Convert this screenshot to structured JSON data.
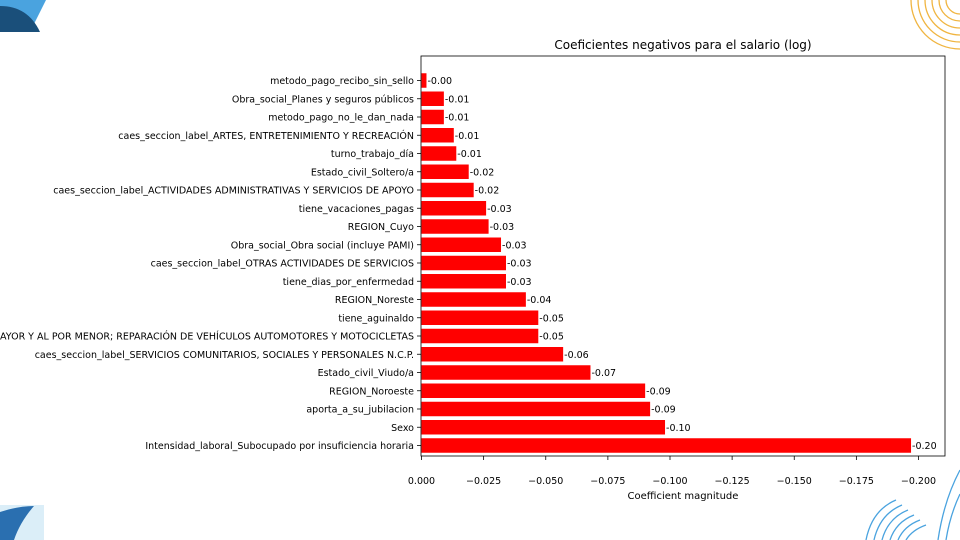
{
  "chart_data": {
    "type": "bar",
    "orientation": "horizontal",
    "title": "Coeficientes negativos para el salario (log)",
    "xlabel": "Coefficient magnitude",
    "ylabel": "",
    "xlim": [
      0.0,
      -0.2
    ],
    "x_inverted": true,
    "bar_color": "#ff0000",
    "xticks": [
      0.0,
      -0.025,
      -0.05,
      -0.075,
      -0.1,
      -0.125,
      -0.15,
      -0.175,
      -0.2
    ],
    "xtick_labels": [
      "0.000",
      "−0.025",
      "−0.050",
      "−0.075",
      "−0.100",
      "−0.125",
      "−0.150",
      "−0.175",
      "−0.200"
    ],
    "categories": [
      "metodo_pago_recibo_sin_sello",
      "Obra_social_Planes y seguros públicos",
      "metodo_pago_no_le_dan_nada",
      "caes_seccion_label_ARTES, ENTRETENIMIENTO Y RECREACIÓN",
      "turno_trabajo_día",
      "Estado_civil_Soltero/a",
      "caes_seccion_label_ACTIVIDADES ADMINISTRATIVAS Y SERVICIOS DE APOYO",
      "tiene_vacaciones_pagas",
      "REGION_Cuyo",
      "Obra_social_Obra social (incluye PAMI)",
      "caes_seccion_label_OTRAS ACTIVIDADES DE SERVICIOS",
      "tiene_dias_por_enfermedad",
      "REGION_Noreste",
      "tiene_aguinaldo",
      "MAYOR Y AL POR MENOR; REPARACIÓN DE VEHÍCULOS AUTOMOTORES Y MOTOCICLETAS",
      "caes_seccion_label_SERVICIOS COMUNITARIOS, SOCIALES Y PERSONALES N.C.P.",
      "Estado_civil_Viudo/a",
      "REGION_Noroeste",
      "aporta_a_su_jubilacion",
      "Sexo",
      "Intensidad_laboral_Subocupado por insuficiencia horaria"
    ],
    "values": [
      -0.002,
      -0.009,
      -0.009,
      -0.013,
      -0.014,
      -0.019,
      -0.021,
      -0.026,
      -0.027,
      -0.032,
      -0.034,
      -0.034,
      -0.042,
      -0.047,
      -0.047,
      -0.057,
      -0.068,
      -0.09,
      -0.092,
      -0.098,
      -0.197
    ],
    "data_labels": [
      "-0.00",
      "-0.01",
      "-0.01",
      "-0.01",
      "-0.01",
      "-0.02",
      "-0.02",
      "-0.03",
      "-0.03",
      "-0.03",
      "-0.03",
      "-0.03",
      "-0.04",
      "-0.05",
      "-0.05",
      "-0.06",
      "-0.07",
      "-0.09",
      "-0.09",
      "-0.10",
      "-0.20"
    ]
  },
  "colors": {
    "deco_dark": "#1a4f7a",
    "deco_light": "#4aa3df",
    "deco_pale": "#dbeef8",
    "deco_gold": "#f0b541"
  }
}
